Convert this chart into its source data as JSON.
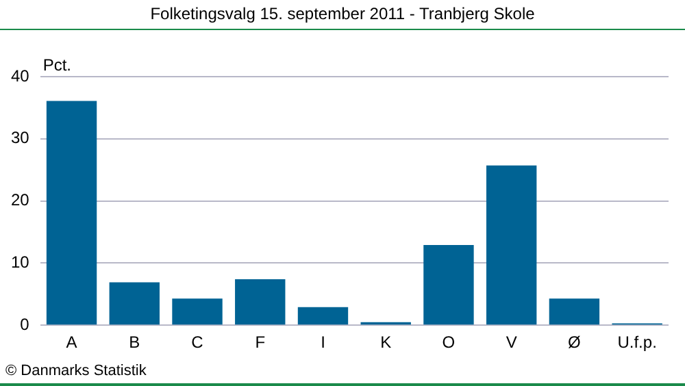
{
  "chart_data": {
    "type": "bar",
    "title": "Folketingsvalg 15. september 2011 - Tranbjerg Skole",
    "ylabel": "Pct.",
    "categories": [
      "A",
      "B",
      "C",
      "F",
      "I",
      "K",
      "O",
      "V",
      "Ø",
      "U.f.p."
    ],
    "values": [
      36.1,
      6.9,
      4.3,
      7.4,
      2.9,
      0.5,
      12.9,
      25.7,
      4.3,
      0.3
    ],
    "color": "#006394",
    "ylim": [
      0,
      40
    ],
    "yticks": [
      0,
      10,
      20,
      30,
      40
    ],
    "grid": "y",
    "legend": false,
    "annotations": [
      "© Danmarks Statistik"
    ]
  }
}
